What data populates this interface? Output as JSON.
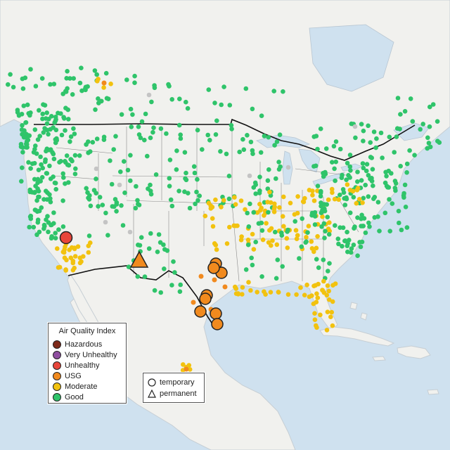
{
  "legend": {
    "title": "Air Quality Index",
    "categories": [
      {
        "label": "Hazardous",
        "color": "#7e2a1a"
      },
      {
        "label": "Very Unhealthy",
        "color": "#8f4fa0"
      },
      {
        "label": "Unhealthy",
        "color": "#e8463b"
      },
      {
        "label": "USG",
        "color": "#f18a1e"
      },
      {
        "label": "Moderate",
        "color": "#f2c20f"
      },
      {
        "label": "Good",
        "color": "#2fc46a"
      }
    ],
    "shape_legend": {
      "temporary_label": "temporary",
      "permanent_label": "permanent"
    }
  },
  "colors": {
    "ocean": "#cfe1ef",
    "land": "#f1f1ee",
    "no_data": "#c4c4c4"
  }
}
